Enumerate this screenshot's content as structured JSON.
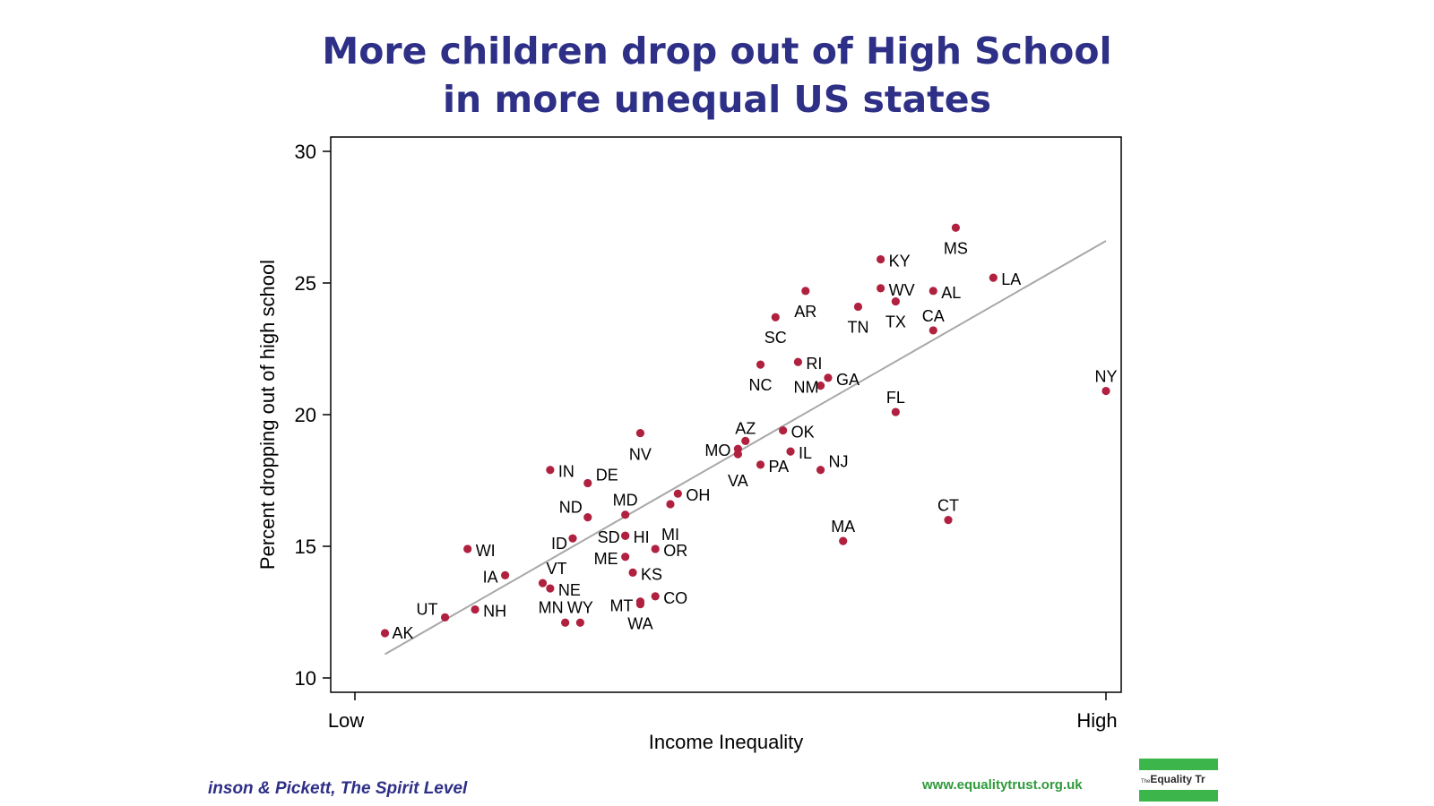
{
  "slide": {
    "title_line1": "More children drop out of High School",
    "title_line2": "in more unequal US states",
    "source": "inson & Pickett, The Spirit Level",
    "website": "www.equalitytrust.org.uk",
    "logo_small": "The",
    "logo_text": "Equality Tr"
  },
  "chart_data": {
    "type": "scatter",
    "title": "",
    "xlabel": "Income Inequality",
    "ylabel": "Percent dropping out of high school",
    "x_tick_labels": [
      "Low",
      "High"
    ],
    "xlim": [
      0,
      100
    ],
    "ylim": [
      10,
      30
    ],
    "yticks": [
      10,
      15,
      20,
      25,
      30
    ],
    "grid": false,
    "colors": {
      "point": "#b0203f",
      "fit_line": "#a8a8a8",
      "axis": "#000000"
    },
    "fit_line": {
      "x": [
        4,
        100
      ],
      "y": [
        10.9,
        26.6
      ]
    },
    "points": [
      {
        "label": "AK",
        "x": 4,
        "y": 11.7
      },
      {
        "label": "UT",
        "x": 12,
        "y": 12.3
      },
      {
        "label": "NH",
        "x": 16,
        "y": 12.6
      },
      {
        "label": "WI",
        "x": 15,
        "y": 14.9
      },
      {
        "label": "IA",
        "x": 20,
        "y": 13.9
      },
      {
        "label": "VT",
        "x": 25,
        "y": 13.6
      },
      {
        "label": "NE",
        "x": 26,
        "y": 13.4
      },
      {
        "label": "MN",
        "x": 28,
        "y": 12.1
      },
      {
        "label": "WY",
        "x": 30,
        "y": 12.1
      },
      {
        "label": "IN",
        "x": 26,
        "y": 17.9
      },
      {
        "label": "DE",
        "x": 31,
        "y": 17.4
      },
      {
        "label": "ND",
        "x": 31,
        "y": 16.1
      },
      {
        "label": "ID",
        "x": 29,
        "y": 15.3
      },
      {
        "label": "MD",
        "x": 36,
        "y": 16.2
      },
      {
        "label": "SD",
        "x": 36,
        "y": 15.4
      },
      {
        "label": "HI",
        "x": 36,
        "y": 15.4
      },
      {
        "label": "ME",
        "x": 36,
        "y": 14.6
      },
      {
        "label": "KS",
        "x": 37,
        "y": 14.0
      },
      {
        "label": "MT",
        "x": 38,
        "y": 12.9
      },
      {
        "label": "WA",
        "x": 38,
        "y": 12.8
      },
      {
        "label": "CO",
        "x": 40,
        "y": 13.1
      },
      {
        "label": "OR",
        "x": 40,
        "y": 14.9
      },
      {
        "label": "NV",
        "x": 38,
        "y": 19.3
      },
      {
        "label": "OH",
        "x": 43,
        "y": 17.0
      },
      {
        "label": "MI",
        "x": 42,
        "y": 16.6
      },
      {
        "label": "MO",
        "x": 51,
        "y": 18.7
      },
      {
        "label": "AZ",
        "x": 52,
        "y": 19.0
      },
      {
        "label": "VA",
        "x": 51,
        "y": 18.5
      },
      {
        "label": "PA",
        "x": 54,
        "y": 18.1
      },
      {
        "label": "OK",
        "x": 57,
        "y": 19.4
      },
      {
        "label": "IL",
        "x": 58,
        "y": 18.6
      },
      {
        "label": "NJ",
        "x": 62,
        "y": 17.9
      },
      {
        "label": "NC",
        "x": 54,
        "y": 21.9
      },
      {
        "label": "RI",
        "x": 59,
        "y": 22.0
      },
      {
        "label": "NM",
        "x": 62,
        "y": 21.1
      },
      {
        "label": "GA",
        "x": 63,
        "y": 21.4
      },
      {
        "label": "SC",
        "x": 56,
        "y": 23.7
      },
      {
        "label": "AR",
        "x": 60,
        "y": 24.7
      },
      {
        "label": "TN",
        "x": 67,
        "y": 24.1
      },
      {
        "label": "KY",
        "x": 70,
        "y": 25.9
      },
      {
        "label": "WV",
        "x": 70,
        "y": 24.8
      },
      {
        "label": "TX",
        "x": 72,
        "y": 24.3
      },
      {
        "label": "MS",
        "x": 80,
        "y": 27.1
      },
      {
        "label": "AL",
        "x": 77,
        "y": 24.7
      },
      {
        "label": "CA",
        "x": 77,
        "y": 23.2
      },
      {
        "label": "LA",
        "x": 85,
        "y": 25.2
      },
      {
        "label": "FL",
        "x": 72,
        "y": 20.1
      },
      {
        "label": "NY",
        "x": 100,
        "y": 20.9
      },
      {
        "label": "MA",
        "x": 65,
        "y": 15.2
      },
      {
        "label": "CT",
        "x": 79,
        "y": 16.0
      }
    ]
  }
}
